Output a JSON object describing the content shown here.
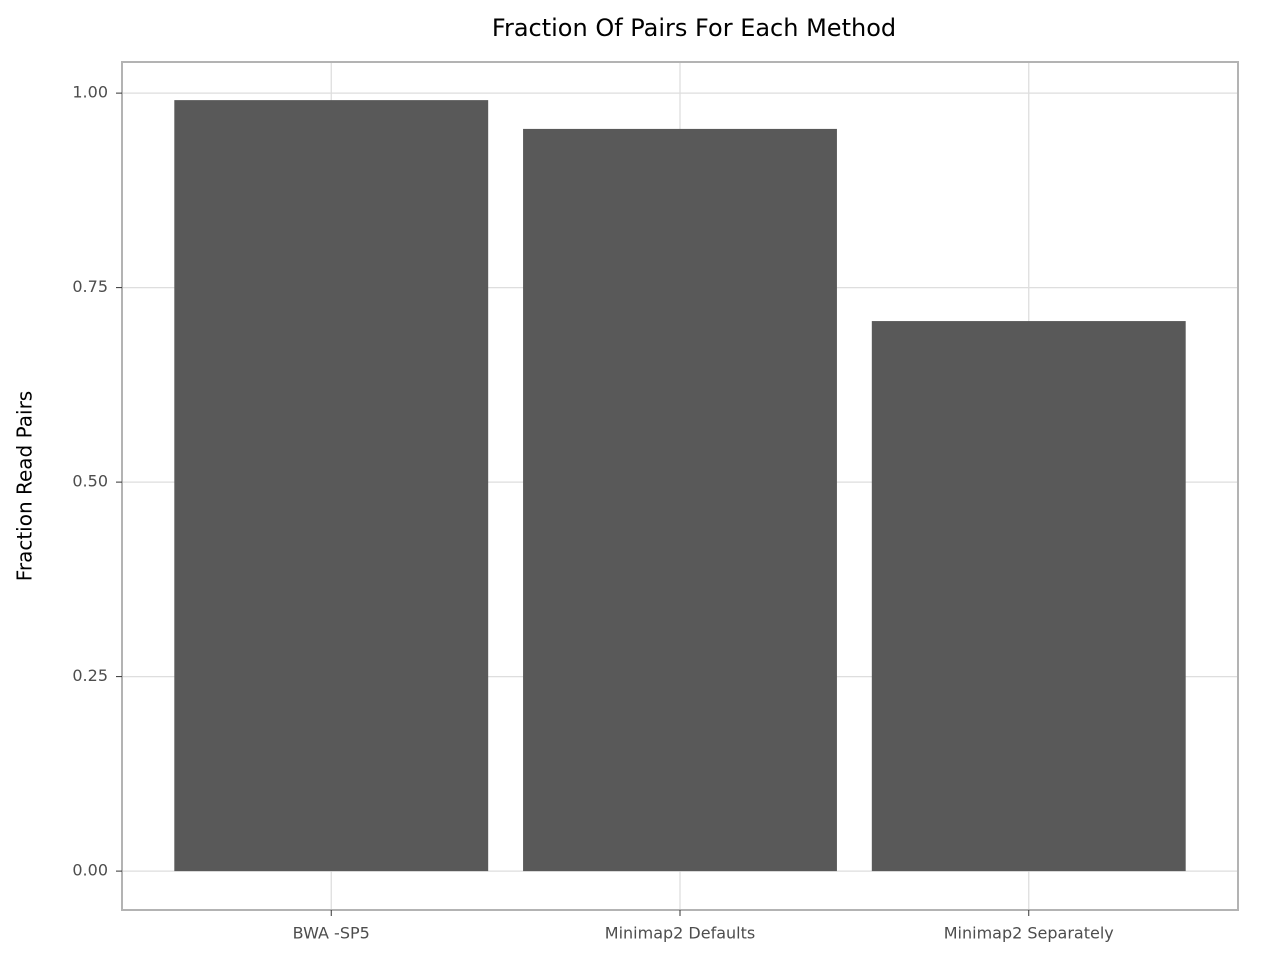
{
  "chart_data": {
    "type": "bar",
    "title": "Fraction Of Pairs For Each Method",
    "y_label": "Fraction Read Pairs",
    "categories": [
      "BWA -SP5",
      "Minimap2 Defaults",
      "Minimap2 Separately"
    ],
    "values": [
      0.991,
      0.954,
      0.707
    ],
    "color": "#595959",
    "ylim": [
      -0.05,
      1.04
    ],
    "yticks": [
      {
        "value": 0,
        "label": "0.00"
      },
      {
        "value": 0.25,
        "label": "0.25"
      },
      {
        "value": 0.5,
        "label": "0.50"
      },
      {
        "value": 0.75,
        "label": "0.75"
      },
      {
        "value": 1,
        "label": "1.00"
      }
    ],
    "grid": true
  }
}
